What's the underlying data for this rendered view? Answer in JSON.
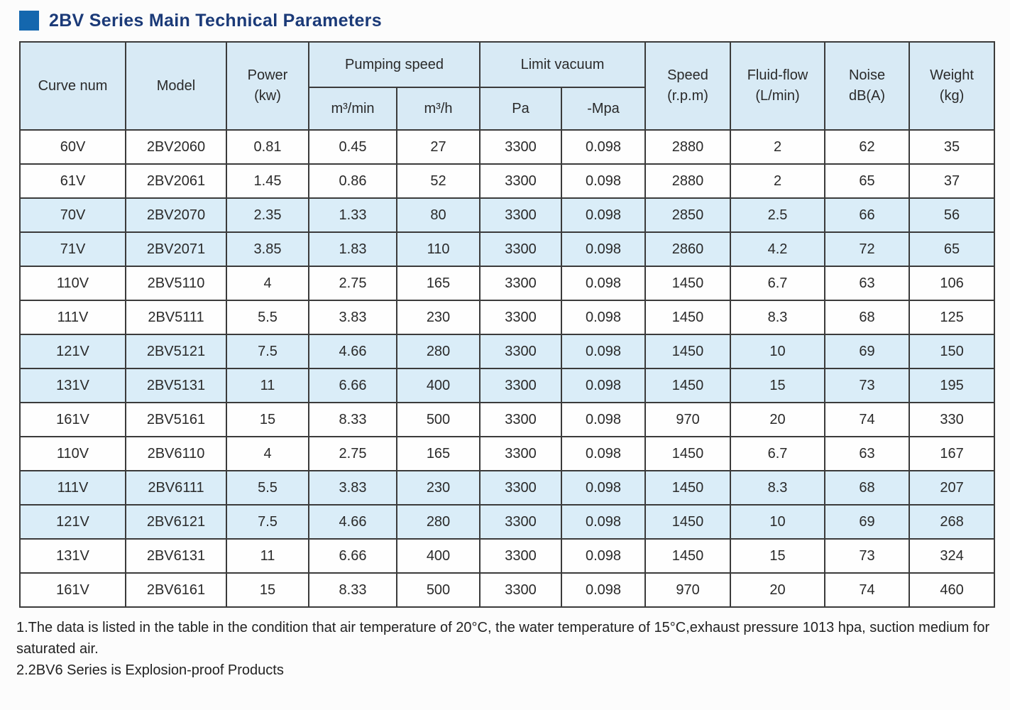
{
  "title": "2BV Series Main Technical Parameters",
  "colors": {
    "title_accent": "#1467ae",
    "title_text": "#1b3a78",
    "header_bg": "#d8eaf5",
    "stripe_bg": "#daedf8",
    "border": "#3b3b3b"
  },
  "table": {
    "header": {
      "curve_num": "Curve num",
      "model": "Model",
      "power_line1": "Power",
      "power_line2": "(kw)",
      "pumping_speed": "Pumping speed",
      "m3min": "m³/min",
      "m3h": "m³/h",
      "limit_vacuum": "Limit vacuum",
      "pa": "Pa",
      "mpa": "-Mpa",
      "speed_line1": "Speed",
      "speed_line2": "(r.p.m)",
      "fluid_line1": "Fluid-flow",
      "fluid_line2": "(L/min)",
      "noise_line1": "Noise",
      "noise_line2": "dB(A)",
      "weight_line1": "Weight",
      "weight_line2": "(kg)"
    },
    "rows": [
      {
        "curve": "60V",
        "model": "2BV2060",
        "power": "0.81",
        "m3min": "0.45",
        "m3h": "27",
        "pa": "3300",
        "mpa": "0.098",
        "speed": "2880",
        "fluid": "2",
        "noise": "62",
        "weight": "35",
        "stripe": false
      },
      {
        "curve": "61V",
        "model": "2BV2061",
        "power": "1.45",
        "m3min": "0.86",
        "m3h": "52",
        "pa": "3300",
        "mpa": "0.098",
        "speed": "2880",
        "fluid": "2",
        "noise": "65",
        "weight": "37",
        "stripe": false
      },
      {
        "curve": "70V",
        "model": "2BV2070",
        "power": "2.35",
        "m3min": "1.33",
        "m3h": "80",
        "pa": "3300",
        "mpa": "0.098",
        "speed": "2850",
        "fluid": "2.5",
        "noise": "66",
        "weight": "56",
        "stripe": true
      },
      {
        "curve": "71V",
        "model": "2BV2071",
        "power": "3.85",
        "m3min": "1.83",
        "m3h": "110",
        "pa": "3300",
        "mpa": "0.098",
        "speed": "2860",
        "fluid": "4.2",
        "noise": "72",
        "weight": "65",
        "stripe": true
      },
      {
        "curve": "110V",
        "model": "2BV5110",
        "power": "4",
        "m3min": "2.75",
        "m3h": "165",
        "pa": "3300",
        "mpa": "0.098",
        "speed": "1450",
        "fluid": "6.7",
        "noise": "63",
        "weight": "106",
        "stripe": false
      },
      {
        "curve": "111V",
        "model": "2BV5111",
        "power": "5.5",
        "m3min": "3.83",
        "m3h": "230",
        "pa": "3300",
        "mpa": "0.098",
        "speed": "1450",
        "fluid": "8.3",
        "noise": "68",
        "weight": "125",
        "stripe": false
      },
      {
        "curve": "121V",
        "model": "2BV5121",
        "power": "7.5",
        "m3min": "4.66",
        "m3h": "280",
        "pa": "3300",
        "mpa": "0.098",
        "speed": "1450",
        "fluid": "10",
        "noise": "69",
        "weight": "150",
        "stripe": true
      },
      {
        "curve": "131V",
        "model": "2BV5131",
        "power": "11",
        "m3min": "6.66",
        "m3h": "400",
        "pa": "3300",
        "mpa": "0.098",
        "speed": "1450",
        "fluid": "15",
        "noise": "73",
        "weight": "195",
        "stripe": true
      },
      {
        "curve": "161V",
        "model": "2BV5161",
        "power": "15",
        "m3min": "8.33",
        "m3h": "500",
        "pa": "3300",
        "mpa": "0.098",
        "speed": "970",
        "fluid": "20",
        "noise": "74",
        "weight": "330",
        "stripe": false
      },
      {
        "curve": "110V",
        "model": "2BV6110",
        "power": "4",
        "m3min": "2.75",
        "m3h": "165",
        "pa": "3300",
        "mpa": "0.098",
        "speed": "1450",
        "fluid": "6.7",
        "noise": "63",
        "weight": "167",
        "stripe": false
      },
      {
        "curve": "111V",
        "model": "2BV6111",
        "power": "5.5",
        "m3min": "3.83",
        "m3h": "230",
        "pa": "3300",
        "mpa": "0.098",
        "speed": "1450",
        "fluid": "8.3",
        "noise": "68",
        "weight": "207",
        "stripe": true
      },
      {
        "curve": "121V",
        "model": "2BV6121",
        "power": "7.5",
        "m3min": "4.66",
        "m3h": "280",
        "pa": "3300",
        "mpa": "0.098",
        "speed": "1450",
        "fluid": "10",
        "noise": "69",
        "weight": "268",
        "stripe": true
      },
      {
        "curve": "131V",
        "model": "2BV6131",
        "power": "11",
        "m3min": "6.66",
        "m3h": "400",
        "pa": "3300",
        "mpa": "0.098",
        "speed": "1450",
        "fluid": "15",
        "noise": "73",
        "weight": "324",
        "stripe": false
      },
      {
        "curve": "161V",
        "model": "2BV6161",
        "power": "15",
        "m3min": "8.33",
        "m3h": "500",
        "pa": "3300",
        "mpa": "0.098",
        "speed": "970",
        "fluid": "20",
        "noise": "74",
        "weight": "460",
        "stripe": false
      }
    ]
  },
  "notes": [
    "1.The data is listed in the table in the condition that air temperature of 20°C, the water temperature of 15°C,exhaust pressure 1013 hpa, suction medium for saturated air.",
    "2.2BV6 Series is Explosion-proof Products"
  ]
}
